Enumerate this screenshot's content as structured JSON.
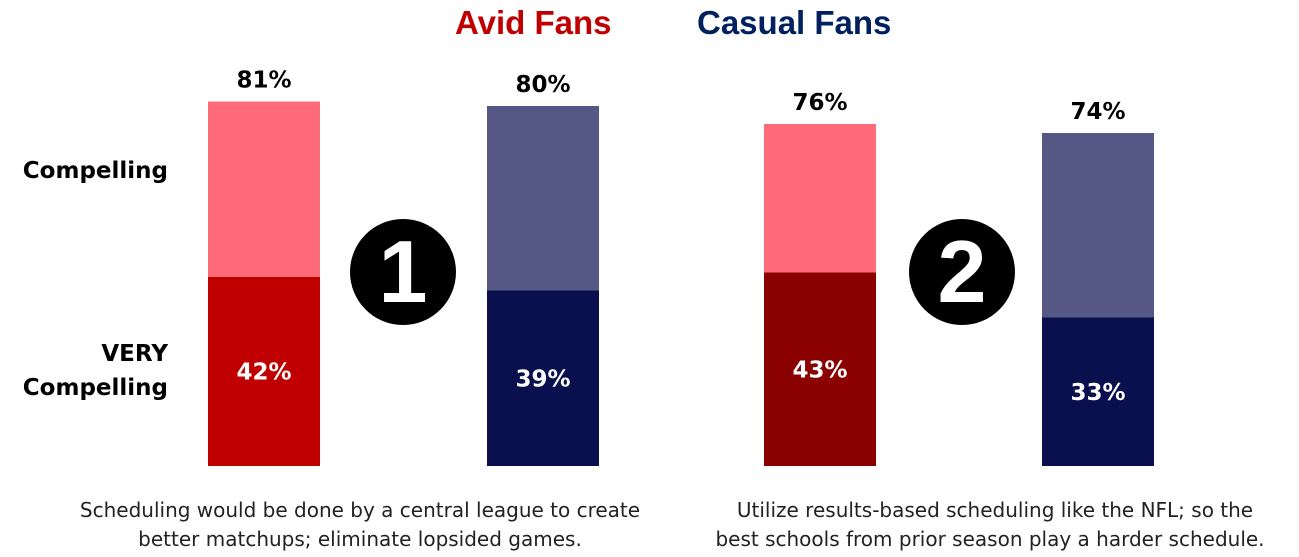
{
  "legend": {
    "avid": "Avid Fans",
    "casual": "Casual Fans"
  },
  "row_labels": {
    "compelling": "Compelling",
    "very_line1": "VERY",
    "very_line2": "Compelling"
  },
  "chart_data": {
    "type": "bar",
    "stacked": true,
    "ylim": [
      0,
      100
    ],
    "groups": [
      {
        "marker": "1",
        "caption_line1": "Scheduling would be done by a central league to create",
        "caption_line2": "better matchups; eliminate lopsided games.",
        "bars": [
          {
            "series": "Avid Fans",
            "total": 81,
            "total_label": "81%",
            "very": 42,
            "very_label": "42%",
            "colors": {
              "top": "#ff6b78",
              "bottom": "#c00000"
            }
          },
          {
            "series": "Casual Fans",
            "total": 80,
            "total_label": "80%",
            "very": 39,
            "very_label": "39%",
            "colors": {
              "top": "#555884",
              "bottom": "#0a0f4e"
            }
          }
        ]
      },
      {
        "marker": "2",
        "caption_line1": "Utilize results-based scheduling like the NFL; so the",
        "caption_line2": "best schools from prior season play a harder schedule.",
        "bars": [
          {
            "series": "Avid Fans",
            "total": 76,
            "total_label": "76%",
            "very": 43,
            "very_label": "43%",
            "colors": {
              "top": "#ff6b78",
              "bottom": "#8b0000"
            }
          },
          {
            "series": "Casual Fans",
            "total": 74,
            "total_label": "74%",
            "very": 33,
            "very_label": "33%",
            "colors": {
              "top": "#555884",
              "bottom": "#0a0f4e"
            }
          }
        ]
      }
    ]
  }
}
